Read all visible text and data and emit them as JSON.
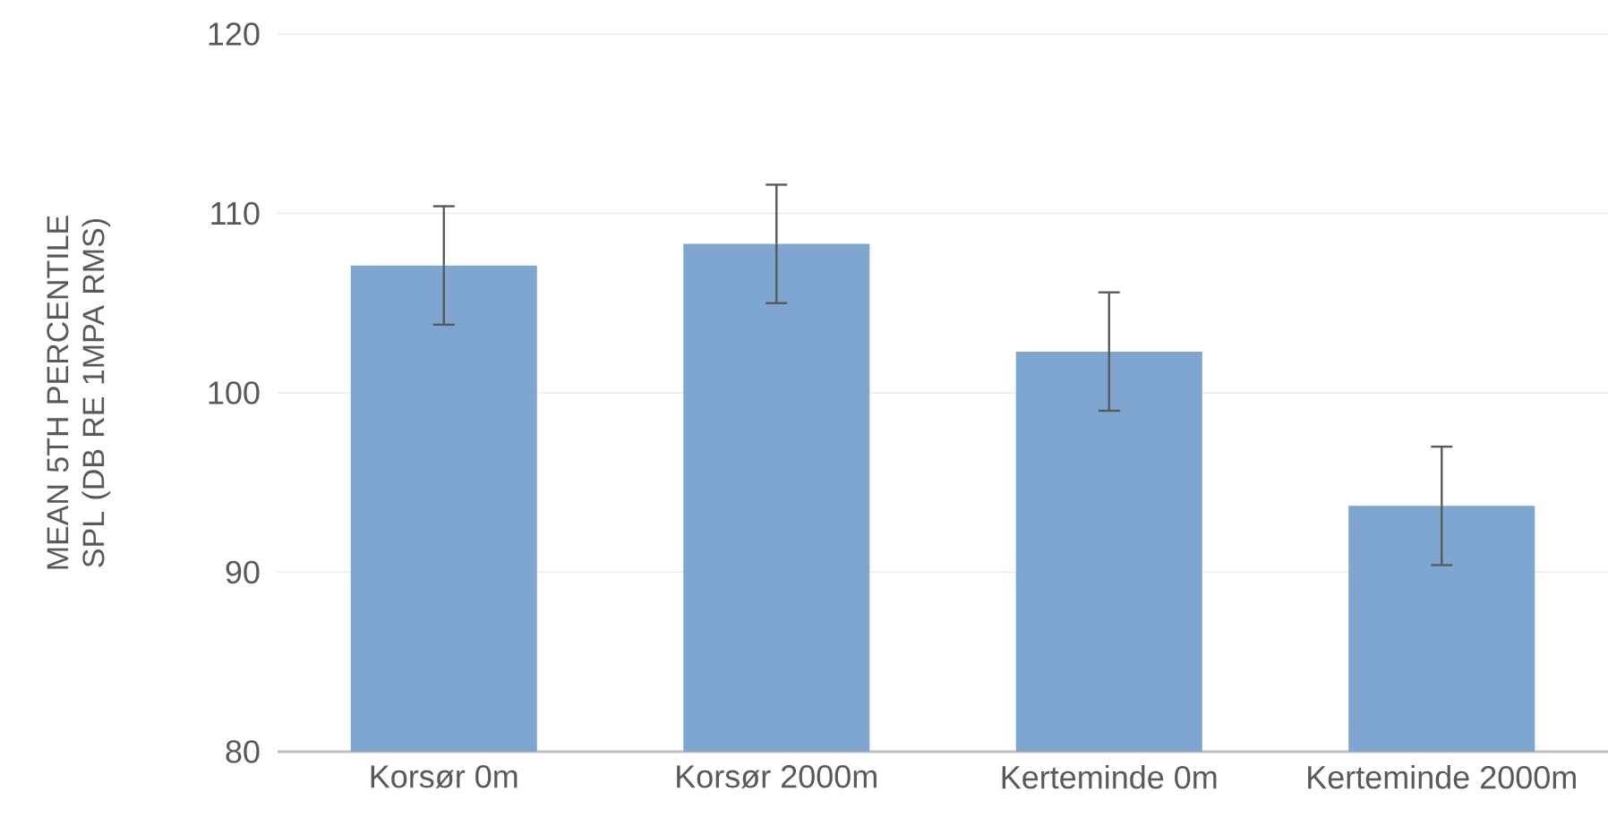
{
  "chart_data": {
    "type": "bar",
    "categories": [
      "Korsør 0m",
      "Korsør 2000m",
      "Kerteminde 0m",
      "Kerteminde 2000m"
    ],
    "values": [
      107.1,
      108.3,
      102.3,
      93.7
    ],
    "errors": [
      3.3,
      3.3,
      3.3,
      3.3
    ],
    "color": "#7fa6d1",
    "ylabel": "MEAN 5TH PERCENTILE SPL (DB RE 1MPA RMS)",
    "ylim": [
      80,
      120
    ],
    "yticks": [
      80,
      90,
      100,
      110,
      120
    ],
    "grid": "y"
  }
}
